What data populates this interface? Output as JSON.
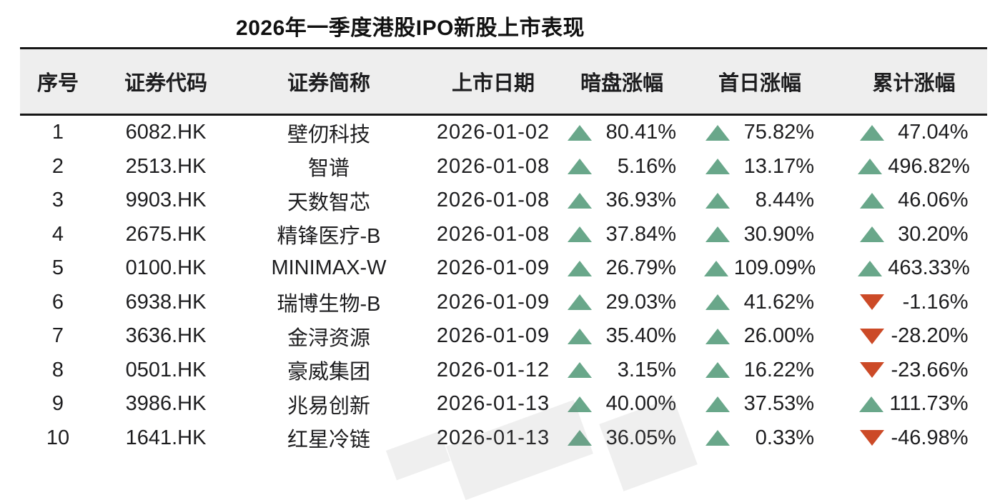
{
  "chart_data": {
    "type": "table",
    "title": "2026年一季度港股IPO新股上市表现",
    "columns": [
      "序号",
      "证券代码",
      "证券简称",
      "上市日期",
      "暗盘涨幅",
      "首日涨幅",
      "累计涨幅"
    ],
    "rows": [
      {
        "no": "1",
        "code": "6082.HK",
        "name": "壁仞科技",
        "date": "2026-01-02",
        "dark_dir": "up",
        "dark": "80.41%",
        "first_dir": "up",
        "first": "75.82%",
        "cum_dir": "up",
        "cum": "47.04%"
      },
      {
        "no": "2",
        "code": "2513.HK",
        "name": "智谱",
        "date": "2026-01-08",
        "dark_dir": "up",
        "dark": "5.16%",
        "first_dir": "up",
        "first": "13.17%",
        "cum_dir": "up",
        "cum": "496.82%"
      },
      {
        "no": "3",
        "code": "9903.HK",
        "name": "天数智芯",
        "date": "2026-01-08",
        "dark_dir": "up",
        "dark": "36.93%",
        "first_dir": "up",
        "first": "8.44%",
        "cum_dir": "up",
        "cum": "46.06%"
      },
      {
        "no": "4",
        "code": "2675.HK",
        "name": "精锋医疗-B",
        "date": "2026-01-08",
        "dark_dir": "up",
        "dark": "37.84%",
        "first_dir": "up",
        "first": "30.90%",
        "cum_dir": "up",
        "cum": "30.20%"
      },
      {
        "no": "5",
        "code": "0100.HK",
        "name": "MINIMAX-W",
        "date": "2026-01-09",
        "dark_dir": "up",
        "dark": "26.79%",
        "first_dir": "up",
        "first": "109.09%",
        "cum_dir": "up",
        "cum": "463.33%"
      },
      {
        "no": "6",
        "code": "6938.HK",
        "name": "瑞博生物-B",
        "date": "2026-01-09",
        "dark_dir": "up",
        "dark": "29.03%",
        "first_dir": "up",
        "first": "41.62%",
        "cum_dir": "down",
        "cum": "-1.16%"
      },
      {
        "no": "7",
        "code": "3636.HK",
        "name": "金浔资源",
        "date": "2026-01-09",
        "dark_dir": "up",
        "dark": "35.40%",
        "first_dir": "up",
        "first": "26.00%",
        "cum_dir": "down",
        "cum": "-28.20%"
      },
      {
        "no": "8",
        "code": "0501.HK",
        "name": "豪威集团",
        "date": "2026-01-12",
        "dark_dir": "up",
        "dark": "3.15%",
        "first_dir": "up",
        "first": "16.22%",
        "cum_dir": "down",
        "cum": "-23.66%"
      },
      {
        "no": "9",
        "code": "3986.HK",
        "name": "兆易创新",
        "date": "2026-01-13",
        "dark_dir": "up",
        "dark": "40.00%",
        "first_dir": "up",
        "first": "37.53%",
        "cum_dir": "up",
        "cum": "111.73%"
      },
      {
        "no": "10",
        "code": "1641.HK",
        "name": "红星冷链",
        "date": "2026-01-13",
        "dark_dir": "up",
        "dark": "36.05%",
        "first_dir": "up",
        "first": "0.33%",
        "cum_dir": "down",
        "cum": "-46.98%"
      }
    ]
  },
  "colors": {
    "up": "#69A78A",
    "down": "#CC4A27",
    "header_bg": "#EEEEEE",
    "rule": "#161616",
    "text": "#1D1D1F",
    "title": "#111111"
  }
}
